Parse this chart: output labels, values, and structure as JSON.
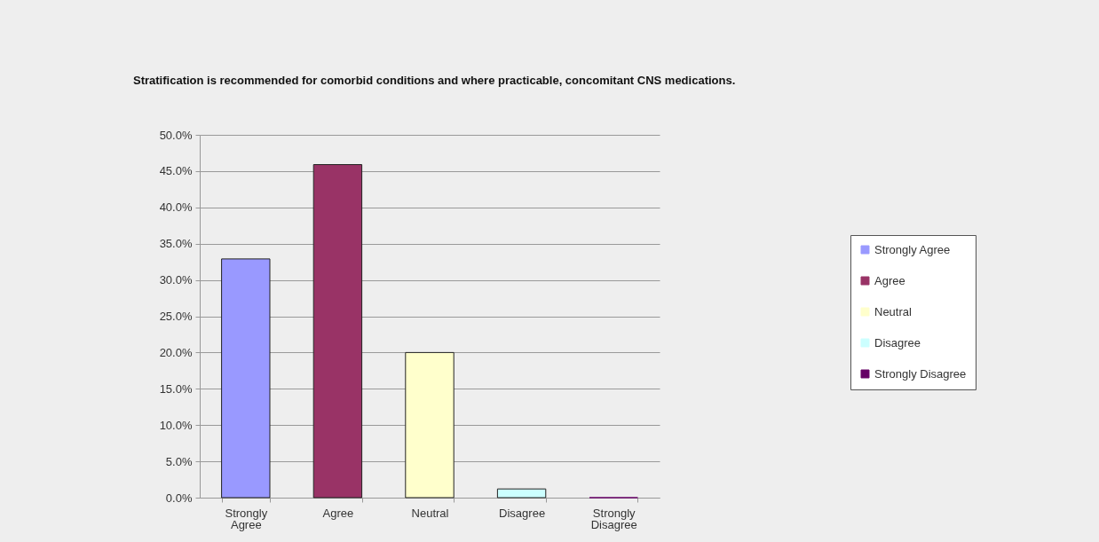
{
  "chart_data": {
    "type": "bar",
    "title": "Stratification is recommended for comorbid conditions and where practicable, concomitant CNS medications.",
    "categories": [
      "Strongly Agree",
      "Agree",
      "Neutral",
      "Disagree",
      "Strongly Disagree"
    ],
    "series": [
      {
        "name": "Strongly Agree",
        "color": "#9999ff",
        "values": [
          32.9,
          null,
          null,
          null,
          null
        ]
      },
      {
        "name": "Agree",
        "color": "#993366",
        "values": [
          null,
          45.9,
          null,
          null,
          null
        ]
      },
      {
        "name": "Neutral",
        "color": "#ffffcc",
        "values": [
          null,
          null,
          20.0,
          null,
          null
        ]
      },
      {
        "name": "Disagree",
        "color": "#ccffff",
        "values": [
          null,
          null,
          null,
          1.2,
          null
        ]
      },
      {
        "name": "Strongly Disagree",
        "color": "#660066",
        "values": [
          null,
          null,
          null,
          null,
          0
        ]
      }
    ],
    "stacked": true,
    "ylim": [
      0,
      50
    ],
    "yticks": [
      {
        "value": 0,
        "label": "0.0%"
      },
      {
        "value": 5,
        "label": "5.0%"
      },
      {
        "value": 10,
        "label": "10.0%"
      },
      {
        "value": 15,
        "label": "15.0%"
      },
      {
        "value": 20,
        "label": "20.0%"
      },
      {
        "value": 25,
        "label": "25.0%"
      },
      {
        "value": 30,
        "label": "30.0%"
      },
      {
        "value": 35,
        "label": "35.0%"
      },
      {
        "value": 40,
        "label": "40.0%"
      },
      {
        "value": 45,
        "label": "45.0%"
      },
      {
        "value": 50,
        "label": "50.0%"
      }
    ],
    "grid": "y",
    "legend": "right"
  }
}
